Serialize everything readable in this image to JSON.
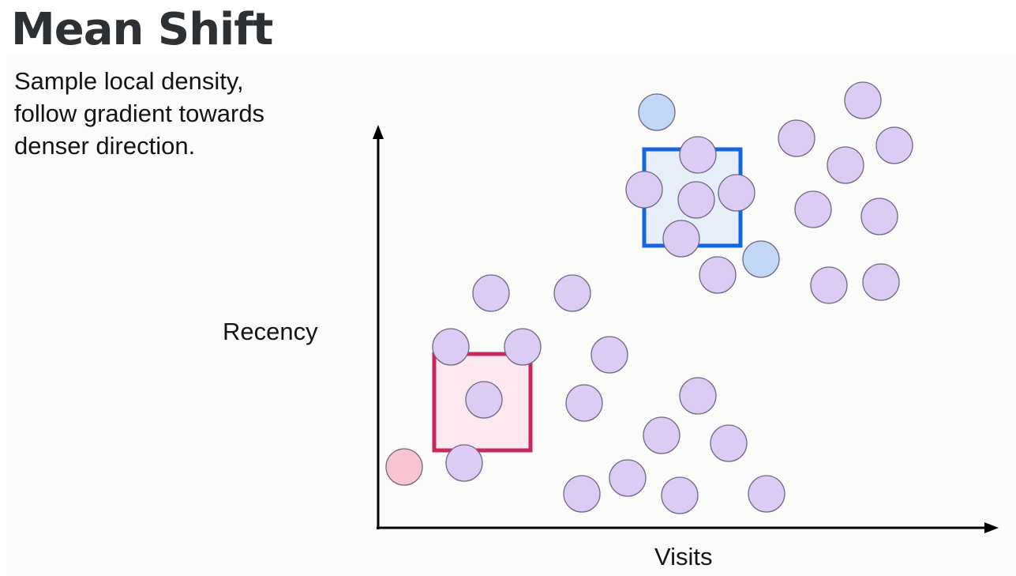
{
  "title": "Mean Shift",
  "description": {
    "lines": [
      "Sample local density,",
      "follow gradient towards",
      "denser direction."
    ]
  },
  "axes": {
    "y_label": "Recency",
    "x_label": "Visits"
  },
  "colors": {
    "point_fill": "#dccbf5",
    "point_stroke": "#6e6880",
    "window_blue_stroke": "#1565e0",
    "window_blue_fill": "#e6eef9",
    "window_red_stroke": "#c72a5a",
    "window_red_fill": "#fde8ef",
    "highlight_blue_point": "#c2d8f6",
    "highlight_red_point": "#f9c4d2"
  }
}
